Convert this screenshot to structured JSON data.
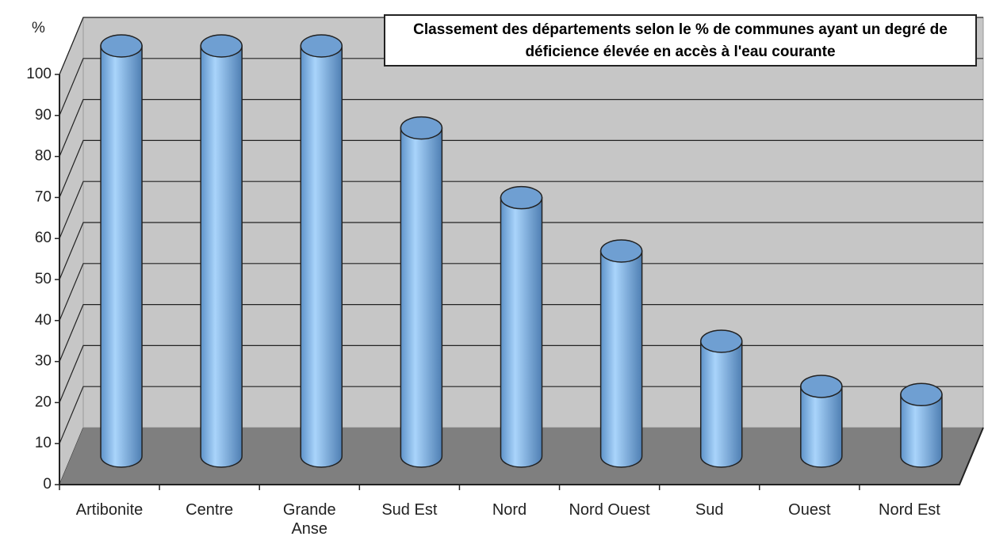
{
  "chart_data": {
    "type": "bar3d",
    "title": "Classement des départements selon le % de communes ayant un degré de déficience élevée en accès à l'eau courante",
    "y_label": "%",
    "categories": [
      "Artibonite",
      "Centre",
      "Grande Anse",
      "Sud Est",
      "Nord",
      "Nord Ouest",
      "Sud",
      "Ouest",
      "Nord Est"
    ],
    "values": [
      100,
      100,
      100,
      80,
      63,
      50,
      28,
      17,
      15
    ],
    "color": "#8fc3f5",
    "ylim": [
      0,
      100
    ],
    "yticks": [
      0,
      10,
      20,
      30,
      40,
      50,
      60,
      70,
      80,
      90,
      100
    ],
    "grid": true
  }
}
